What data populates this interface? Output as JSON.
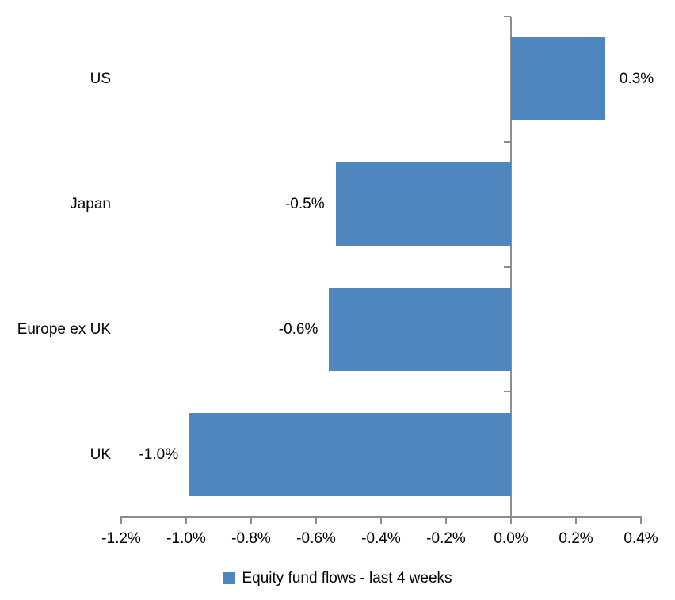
{
  "chart_data": {
    "type": "bar",
    "orientation": "horizontal",
    "title": "",
    "categories": [
      "US",
      "Japan",
      "Europe ex UK",
      "UK"
    ],
    "series": [
      {
        "name": "Equity fund flows - last 4 weeks",
        "values": [
          0.3,
          -0.5,
          -0.6,
          -1.0
        ]
      }
    ],
    "data_labels": [
      "0.3%",
      "-0.5%",
      "-0.6%",
      "-1.0%"
    ],
    "bar_values_precise": [
      0.29,
      -0.54,
      -0.56,
      -0.99
    ],
    "x_tick_labels": [
      "-1.2%",
      "-1.0%",
      "-0.8%",
      "-0.6%",
      "-0.4%",
      "-0.2%",
      "0.0%",
      "0.2%",
      "0.4%"
    ],
    "x_tick_values": [
      -1.2,
      -1.0,
      -0.8,
      -0.6,
      -0.4,
      -0.2,
      0.0,
      0.2,
      0.4
    ],
    "xlim": [
      -1.2,
      0.4
    ],
    "xlabel": "",
    "ylabel": "",
    "grid": "off",
    "legend_position": "bottom-center",
    "colors": {
      "bar": "#4E86BD",
      "axis": "#8C8C8C",
      "text": "#000000",
      "background": "#FFFFFF"
    }
  }
}
